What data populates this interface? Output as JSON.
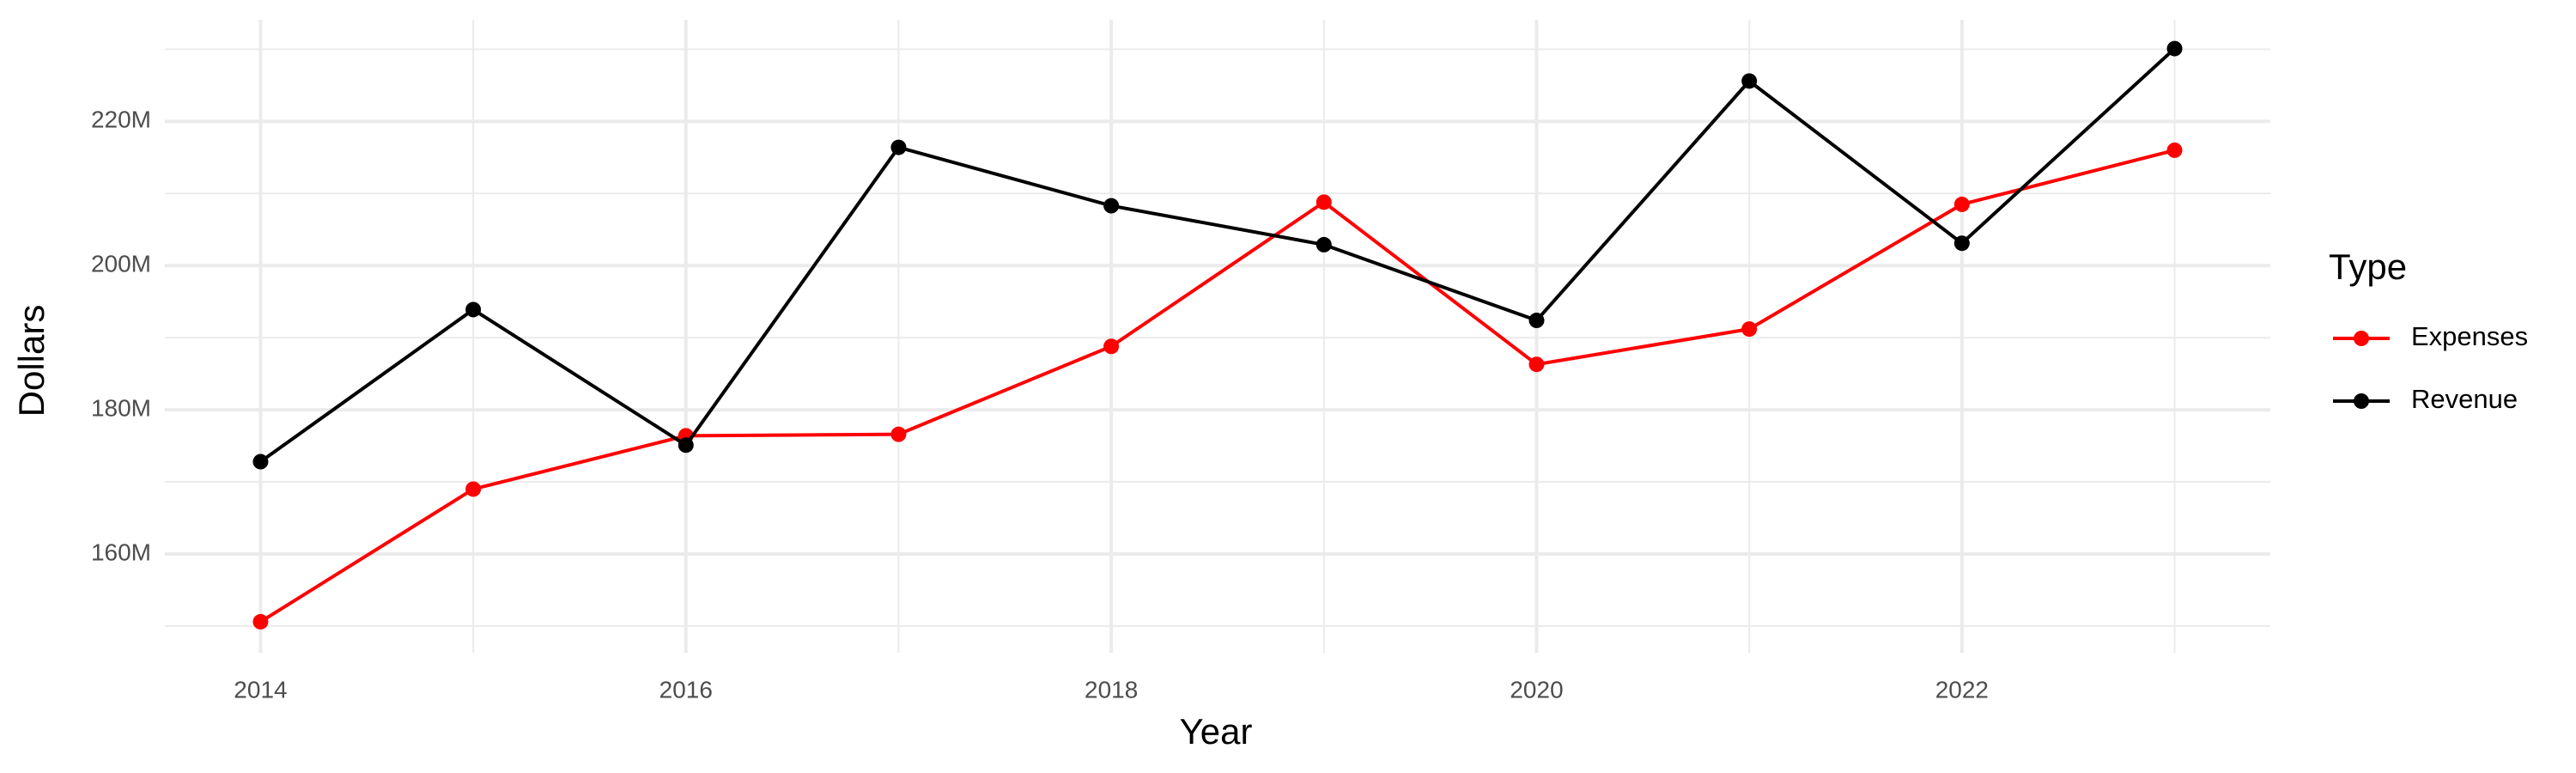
{
  "chart_data": {
    "type": "line",
    "x_label": "Year",
    "y_label": "Dollars",
    "legend_title": "Type",
    "legend": "right",
    "grid": true,
    "x": [
      2014,
      2015,
      2016,
      2017,
      2018,
      2019,
      2020,
      2021,
      2022,
      2023
    ],
    "series": [
      {
        "name": "Expenses",
        "color": "#ff0000",
        "values": [
          150600000,
          169000000,
          176400000,
          176600000,
          188800000,
          208800000,
          186300000,
          191200000,
          208500000,
          216000000
        ]
      },
      {
        "name": "Revenue",
        "color": "#000000",
        "values": [
          172800000,
          193900000,
          175100000,
          216400000,
          208300000,
          202900000,
          192400000,
          225600000,
          203100000,
          230100000
        ]
      }
    ],
    "xlim": [
      2013.55,
      2023.45
    ],
    "xticks": [
      2014,
      2016,
      2018,
      2020,
      2022
    ],
    "ylim": [
      146300000,
      234100000
    ],
    "yticks": [
      {
        "value": 160000000,
        "label": "160M"
      },
      {
        "value": 180000000,
        "label": "180M"
      },
      {
        "value": 200000000,
        "label": "200M"
      },
      {
        "value": 220000000,
        "label": "220M"
      }
    ]
  }
}
